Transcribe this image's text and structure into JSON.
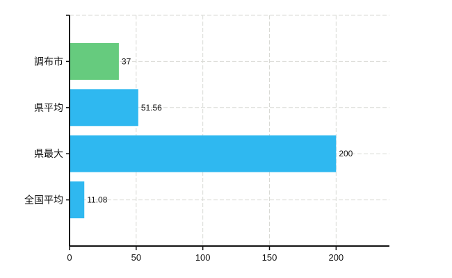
{
  "chart_data": {
    "type": "bar",
    "orientation": "horizontal",
    "title": "",
    "xlabel": "",
    "ylabel": "",
    "categories": [
      "調布市",
      "県平均",
      "県最大",
      "全国平均"
    ],
    "values": [
      37,
      51.56,
      200,
      11.08
    ],
    "value_labels": [
      "37",
      "51.56",
      "200",
      "11.08"
    ],
    "bar_colors": [
      "#66cb7e",
      "#2fb8f0",
      "#2fb8f0",
      "#2fb8f0"
    ],
    "x_ticks": [
      0,
      50,
      100,
      150,
      200
    ],
    "x_tick_labels": [
      "0",
      "50",
      "100",
      "150",
      "200"
    ],
    "xlim": [
      0,
      240
    ],
    "grid": true,
    "legend": false,
    "colors": {
      "accent_green": "#66cb7e",
      "accent_blue": "#2fb8f0",
      "grid": "#d9dad5",
      "axis": "#111111",
      "text": "#111111",
      "background": "#ffffff"
    }
  }
}
